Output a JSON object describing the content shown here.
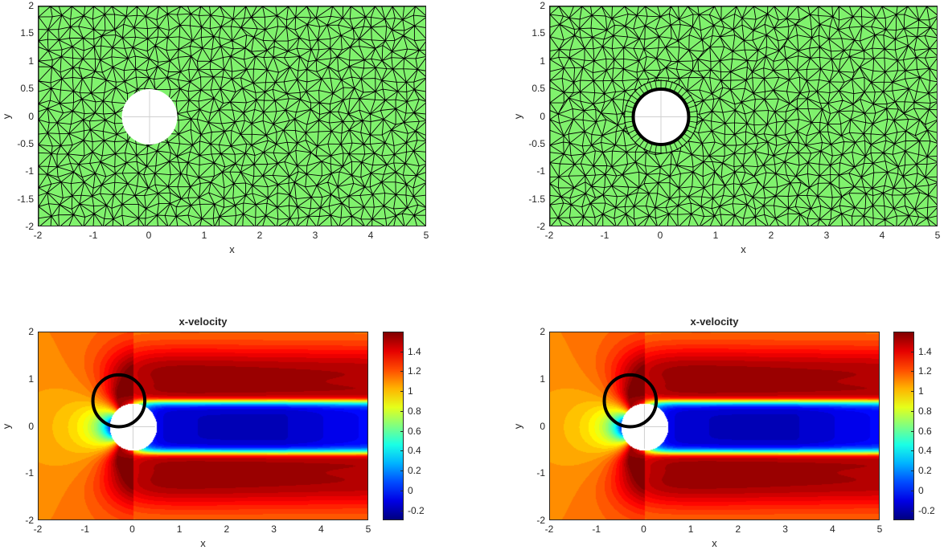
{
  "chart_data": [
    {
      "type": "mesh",
      "title": "",
      "xlabel": "x",
      "ylabel": "y",
      "xlim": [
        -2,
        5
      ],
      "ylim": [
        -2,
        2
      ],
      "xticks": [
        "-2",
        "-1",
        "0",
        "1",
        "2",
        "3",
        "4",
        "5"
      ],
      "yticks": [
        "2",
        "1.5",
        "1",
        "0.5",
        "0",
        "-0.5",
        "-1",
        "-1.5",
        "-2"
      ],
      "obstacle": {
        "center": [
          0,
          0
        ],
        "radius": 0.5
      },
      "refined_near_obstacle": false,
      "face_color": "#80f26d",
      "edge_color": "#000000"
    },
    {
      "type": "mesh",
      "title": "",
      "xlabel": "x",
      "ylabel": "y",
      "xlim": [
        -2,
        5
      ],
      "ylim": [
        -2,
        2
      ],
      "xticks": [
        "-2",
        "-1",
        "0",
        "1",
        "2",
        "3",
        "4",
        "5"
      ],
      "yticks": [
        "2",
        "1.5",
        "1",
        "0.5",
        "0",
        "-0.5",
        "-1",
        "-1.5",
        "-2"
      ],
      "obstacle": {
        "center": [
          0,
          0
        ],
        "radius": 0.5
      },
      "refined_near_obstacle": true,
      "face_color": "#80f26d",
      "edge_color": "#000000"
    },
    {
      "type": "heatmap",
      "title": "x-velocity",
      "xlabel": "x",
      "ylabel": "y",
      "xlim": [
        -2,
        5
      ],
      "ylim": [
        -2,
        2
      ],
      "xticks": [
        "-2",
        "-1",
        "0",
        "1",
        "2",
        "3",
        "4",
        "5"
      ],
      "yticks": [
        "2",
        "1",
        "0",
        "-1",
        "-2"
      ],
      "colormap": "jet",
      "colorbar": {
        "range": [
          -0.3,
          1.6
        ],
        "ticks": [
          "1.4",
          "1.2",
          "1",
          "0.8",
          "0.6",
          "0.4",
          "0.2",
          "0",
          "-0.2"
        ]
      },
      "obstacle": {
        "center": [
          0,
          0
        ],
        "radius": 0.5
      },
      "annotation_circle": {
        "center": [
          -0.3,
          0.55
        ],
        "radius": 0.55,
        "color": "#000000"
      }
    },
    {
      "type": "heatmap",
      "title": "x-velocity",
      "xlabel": "x",
      "ylabel": "y",
      "xlim": [
        -2,
        5
      ],
      "ylim": [
        -2,
        2
      ],
      "xticks": [
        "-2",
        "-1",
        "0",
        "1",
        "2",
        "3",
        "4",
        "5"
      ],
      "yticks": [
        "2",
        "1",
        "0",
        "-1",
        "-2"
      ],
      "colormap": "jet",
      "colorbar": {
        "range": [
          -0.3,
          1.6
        ],
        "ticks": [
          "1.4",
          "1.2",
          "1",
          "0.8",
          "0.6",
          "0.4",
          "0.2",
          "0",
          "-0.2"
        ]
      },
      "obstacle": {
        "center": [
          0,
          0
        ],
        "radius": 0.5
      },
      "annotation_circle": {
        "center": [
          -0.3,
          0.55
        ],
        "radius": 0.55,
        "color": "#000000"
      }
    }
  ]
}
